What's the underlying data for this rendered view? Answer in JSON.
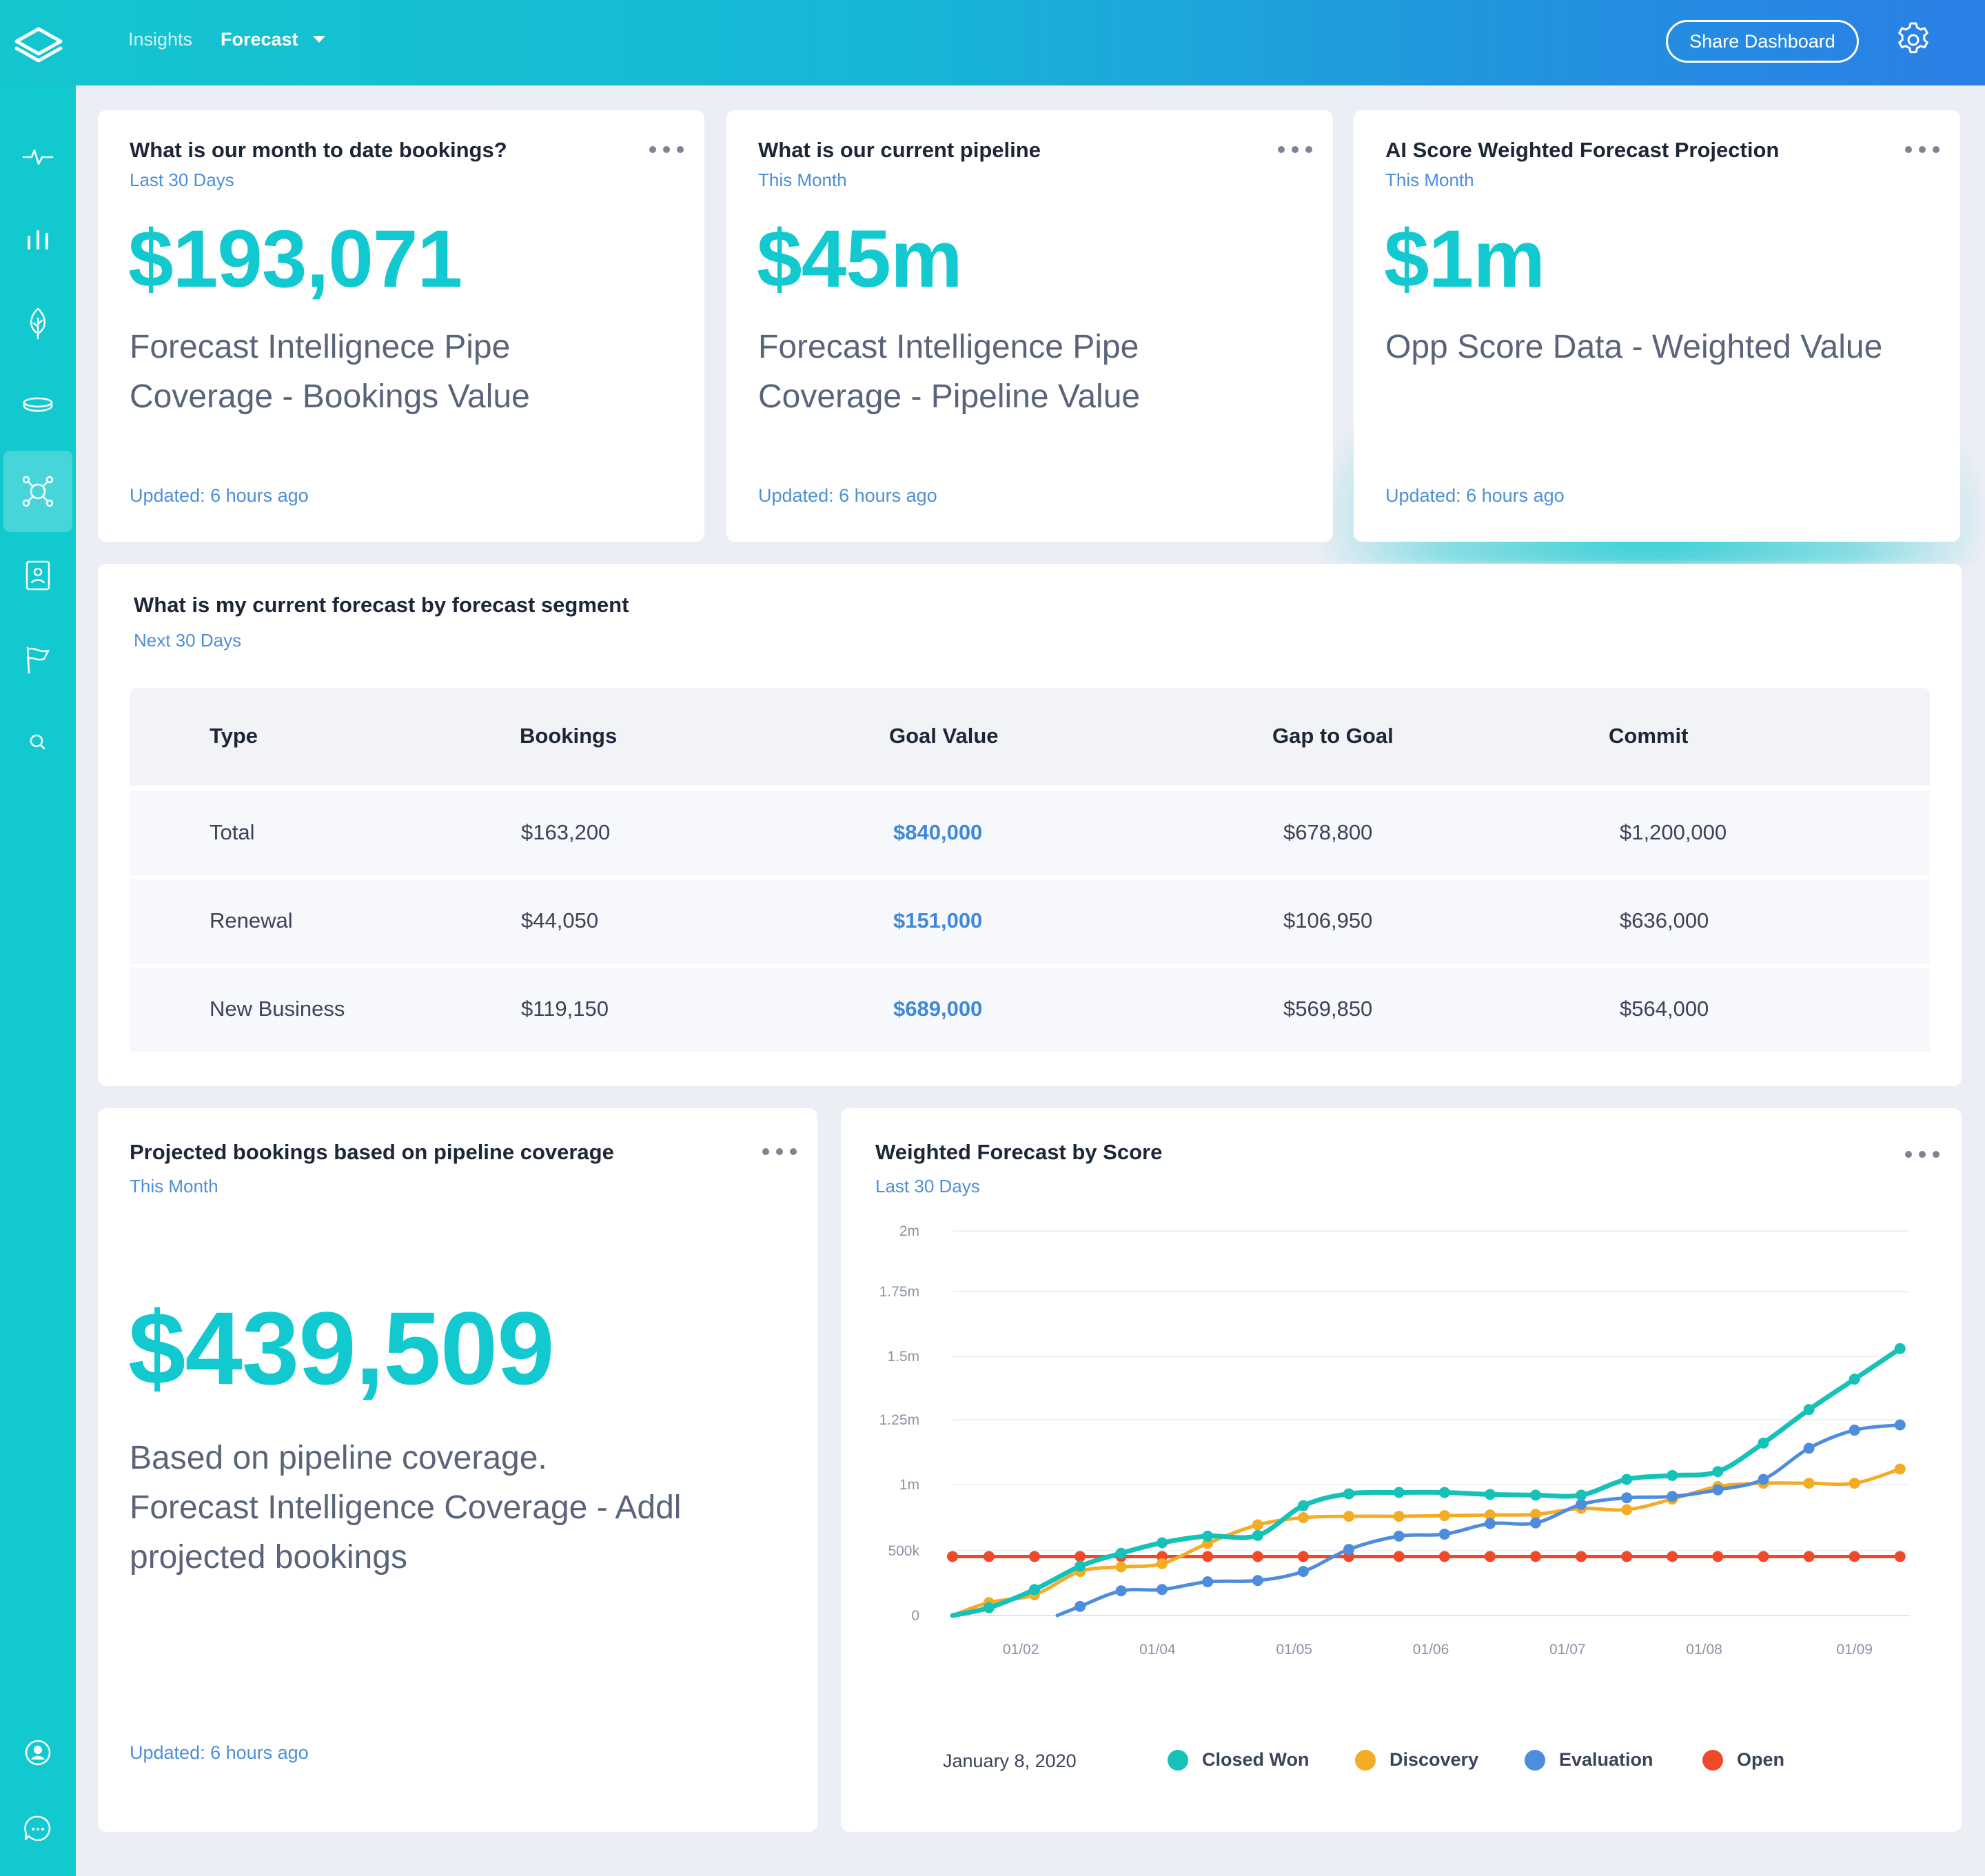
{
  "topbar": {
    "nav": [
      {
        "label": "Insights"
      },
      {
        "label": "Forecast"
      }
    ],
    "share_label": "Share Dashboard"
  },
  "sidebar": {
    "items": [
      "pulse-icon",
      "bars-icon",
      "leaf-icon",
      "stack-icon",
      "network-icon",
      "contact-icon",
      "flag-icon",
      "search-icon"
    ],
    "bottom": [
      "user-icon",
      "chat-icon"
    ]
  },
  "cards": [
    {
      "title": "What is our month to date bookings?",
      "subtitle": "Last 30 Days",
      "value": "$193,071",
      "desc_line1": "Forecast Intellignece Pipe",
      "desc_line2": "Coverage - Bookings Value",
      "updated": "Updated: 6 hours ago"
    },
    {
      "title": "What is our current pipeline",
      "subtitle": "This Month",
      "value": "$45m",
      "desc_line1": "Forecast Intelligence Pipe",
      "desc_line2": "Coverage - Pipeline Value",
      "updated": "Updated: 6 hours ago"
    },
    {
      "title": "AI Score Weighted Forecast Projection",
      "subtitle": "This Month",
      "value": "$1m",
      "desc_line1": "Opp Score Data - Weighted Value",
      "updated": "Updated: 6 hours ago"
    }
  ],
  "forecast_table": {
    "title": "What is my current forecast by forecast segment",
    "subtitle": "Next 30 Days",
    "columns": [
      "Type",
      "Bookings",
      "Goal Value",
      "Gap to Goal",
      "Commit"
    ],
    "rows": [
      [
        "Total",
        "$163,200",
        "$840,000",
        "$678,800",
        "$1,200,000"
      ],
      [
        "Renewal",
        "$44,050",
        "$151,000",
        "$106,950",
        "$636,000"
      ],
      [
        "New Business",
        "$119,150",
        "$689,000",
        "$569,850",
        "$564,000"
      ]
    ]
  },
  "projected": {
    "title": "Projected bookings based on pipeline coverage",
    "subtitle": "This Month",
    "value": "$439,509",
    "desc_line1": "Based on pipeline coverage.",
    "desc_line2": "Forecast Intelligence Coverage - Addl",
    "desc_line3": "projected bookings",
    "updated": "Updated: 6 hours ago"
  },
  "weighted": {
    "title": "Weighted Forecast by Score",
    "subtitle": "Last 30 Days",
    "date_label": "January 8, 2020"
  },
  "colors": {
    "teal": "#12c9cf",
    "closed_won": "#16c1b8",
    "discovery": "#f4ab26",
    "evaluation": "#4e8cdc",
    "open": "#ee4a2a"
  },
  "chart_data": {
    "type": "line",
    "title": "Weighted Forecast by Score",
    "y_ticks": [
      "0",
      "500k",
      "1m",
      "1.25m",
      "1.5m",
      "1.75m",
      "2m"
    ],
    "y_tick_values": [
      0,
      500000,
      1000000,
      1250000,
      1500000,
      1750000,
      2000000
    ],
    "x_ticks": [
      "01/02",
      "01/04",
      "01/05",
      "01/06",
      "01/07",
      "01/08",
      "01/09"
    ],
    "x_tick_pos": [
      1.5,
      4.5,
      7.5,
      10.5,
      13.5,
      16.5,
      19.8
    ],
    "ylim": [
      0,
      2000000
    ],
    "xlim": [
      0,
      21
    ],
    "grid": true,
    "legend_position": "bottom",
    "series": [
      {
        "name": "Closed Won",
        "color": "#16c1b8",
        "points": [
          [
            0,
            0
          ],
          [
            0.8,
            60000
          ],
          [
            1.8,
            200000
          ],
          [
            2.8,
            380000
          ],
          [
            3.7,
            480000
          ],
          [
            4.6,
            560000
          ],
          [
            5.6,
            610000
          ],
          [
            6.7,
            615000
          ],
          [
            7.7,
            840000
          ],
          [
            8.7,
            930000
          ],
          [
            9.8,
            940000
          ],
          [
            10.8,
            940000
          ],
          [
            11.8,
            925000
          ],
          [
            12.8,
            920000
          ],
          [
            13.8,
            920000
          ],
          [
            14.8,
            1020000
          ],
          [
            15.8,
            1035000
          ],
          [
            16.8,
            1050000
          ],
          [
            17.8,
            1160000
          ],
          [
            18.8,
            1290000
          ],
          [
            19.8,
            1410000
          ],
          [
            20.8,
            1530000
          ]
        ]
      },
      {
        "name": "Discovery",
        "color": "#f4ab26",
        "points": [
          [
            0,
            0
          ],
          [
            0.8,
            100000
          ],
          [
            1.8,
            160000
          ],
          [
            2.8,
            340000
          ],
          [
            3.7,
            375000
          ],
          [
            4.6,
            400000
          ],
          [
            5.6,
            555000
          ],
          [
            6.7,
            695000
          ],
          [
            7.7,
            750000
          ],
          [
            8.7,
            760000
          ],
          [
            9.8,
            760000
          ],
          [
            10.8,
            765000
          ],
          [
            11.8,
            770000
          ],
          [
            12.8,
            775000
          ],
          [
            13.8,
            820000
          ],
          [
            14.8,
            810000
          ],
          [
            15.8,
            890000
          ],
          [
            16.8,
            985000
          ],
          [
            17.8,
            1005000
          ],
          [
            18.8,
            1005000
          ],
          [
            19.8,
            1005000
          ],
          [
            20.8,
            1060000
          ]
        ]
      },
      {
        "name": "Evaluation",
        "color": "#4e8cdc",
        "points": [
          [
            2.3,
            0
          ],
          [
            2.8,
            70000
          ],
          [
            3.7,
            190000
          ],
          [
            4.6,
            200000
          ],
          [
            5.6,
            260000
          ],
          [
            6.7,
            270000
          ],
          [
            7.7,
            340000
          ],
          [
            8.7,
            510000
          ],
          [
            9.8,
            610000
          ],
          [
            10.8,
            625000
          ],
          [
            11.8,
            705000
          ],
          [
            12.8,
            710000
          ],
          [
            13.8,
            850000
          ],
          [
            14.8,
            900000
          ],
          [
            15.8,
            910000
          ],
          [
            16.8,
            960000
          ],
          [
            17.8,
            1020000
          ],
          [
            18.8,
            1140000
          ],
          [
            19.8,
            1210000
          ],
          [
            20.8,
            1230000
          ]
        ]
      },
      {
        "name": "Open",
        "color": "#ee4a2a",
        "points": [
          [
            0,
            455000
          ],
          [
            0.8,
            455000
          ],
          [
            1.8,
            455000
          ],
          [
            2.8,
            455000
          ],
          [
            3.7,
            455000
          ],
          [
            4.6,
            455000
          ],
          [
            5.6,
            455000
          ],
          [
            6.7,
            455000
          ],
          [
            7.7,
            455000
          ],
          [
            8.7,
            455000
          ],
          [
            9.8,
            455000
          ],
          [
            10.8,
            455000
          ],
          [
            11.8,
            455000
          ],
          [
            12.8,
            455000
          ],
          [
            13.8,
            455000
          ],
          [
            14.8,
            455000
          ],
          [
            15.8,
            455000
          ],
          [
            16.8,
            455000
          ],
          [
            17.8,
            455000
          ],
          [
            18.8,
            455000
          ],
          [
            19.8,
            455000
          ],
          [
            20.8,
            455000
          ]
        ]
      }
    ]
  }
}
